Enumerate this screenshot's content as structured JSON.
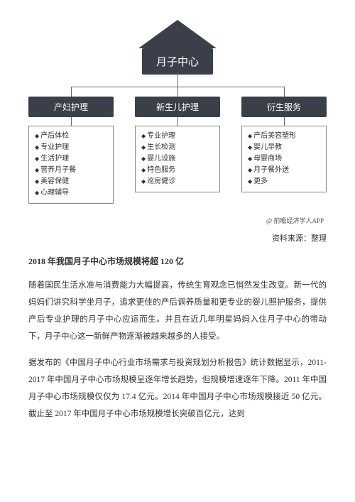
{
  "diagram": {
    "main_label": "月子中心",
    "branches": [
      {
        "label": "产妇护理",
        "items": [
          "产后体检",
          "专业护理",
          "生活护理",
          "营养月子餐",
          "美容保健",
          "心理辅导"
        ]
      },
      {
        "label": "新生儿护理",
        "items": [
          "专业护理",
          "生长检测",
          "婴儿设施",
          "特色服务",
          "巡房健诊"
        ]
      },
      {
        "label": "衍生服务",
        "items": [
          "产后美容塑形",
          "婴儿早教",
          "母婴商场",
          "月子餐外送",
          "更多"
        ]
      }
    ],
    "attribution": "@ 前瞻经济学人APP",
    "source": "资料来源：整理"
  },
  "heading": "2018 年我国月子中心市场规模将超 120 亿",
  "paragraphs": [
    "随着国民生活水准与消费能力大幅提高，传统生育观念已悄然发生改变。新一代的妈妈们讲究科学坐月子，追求更佳的产后调养质量和更专业的婴儿照护服务，提供产后专业护理的月子中心应运而生。并且在近几年明星妈妈入住月子中心的带动下，月子中心这一新鲜产物逐渐被越来越多的人接受。",
    "据发布的《中国月子中心行业市场需求与投资规划分析报告》统计数据显示，2011-2017 年中国月子中心市场规模呈逐年增长趋势，但规模增速逐年下降。2011 年中国月子中心市场规模仅仅为 17.4 亿元。2014 年中国月子中心市场规模接近 50 亿元。截止至 2017 年中国月子中心市场规模增长突破百亿元，达到"
  ]
}
